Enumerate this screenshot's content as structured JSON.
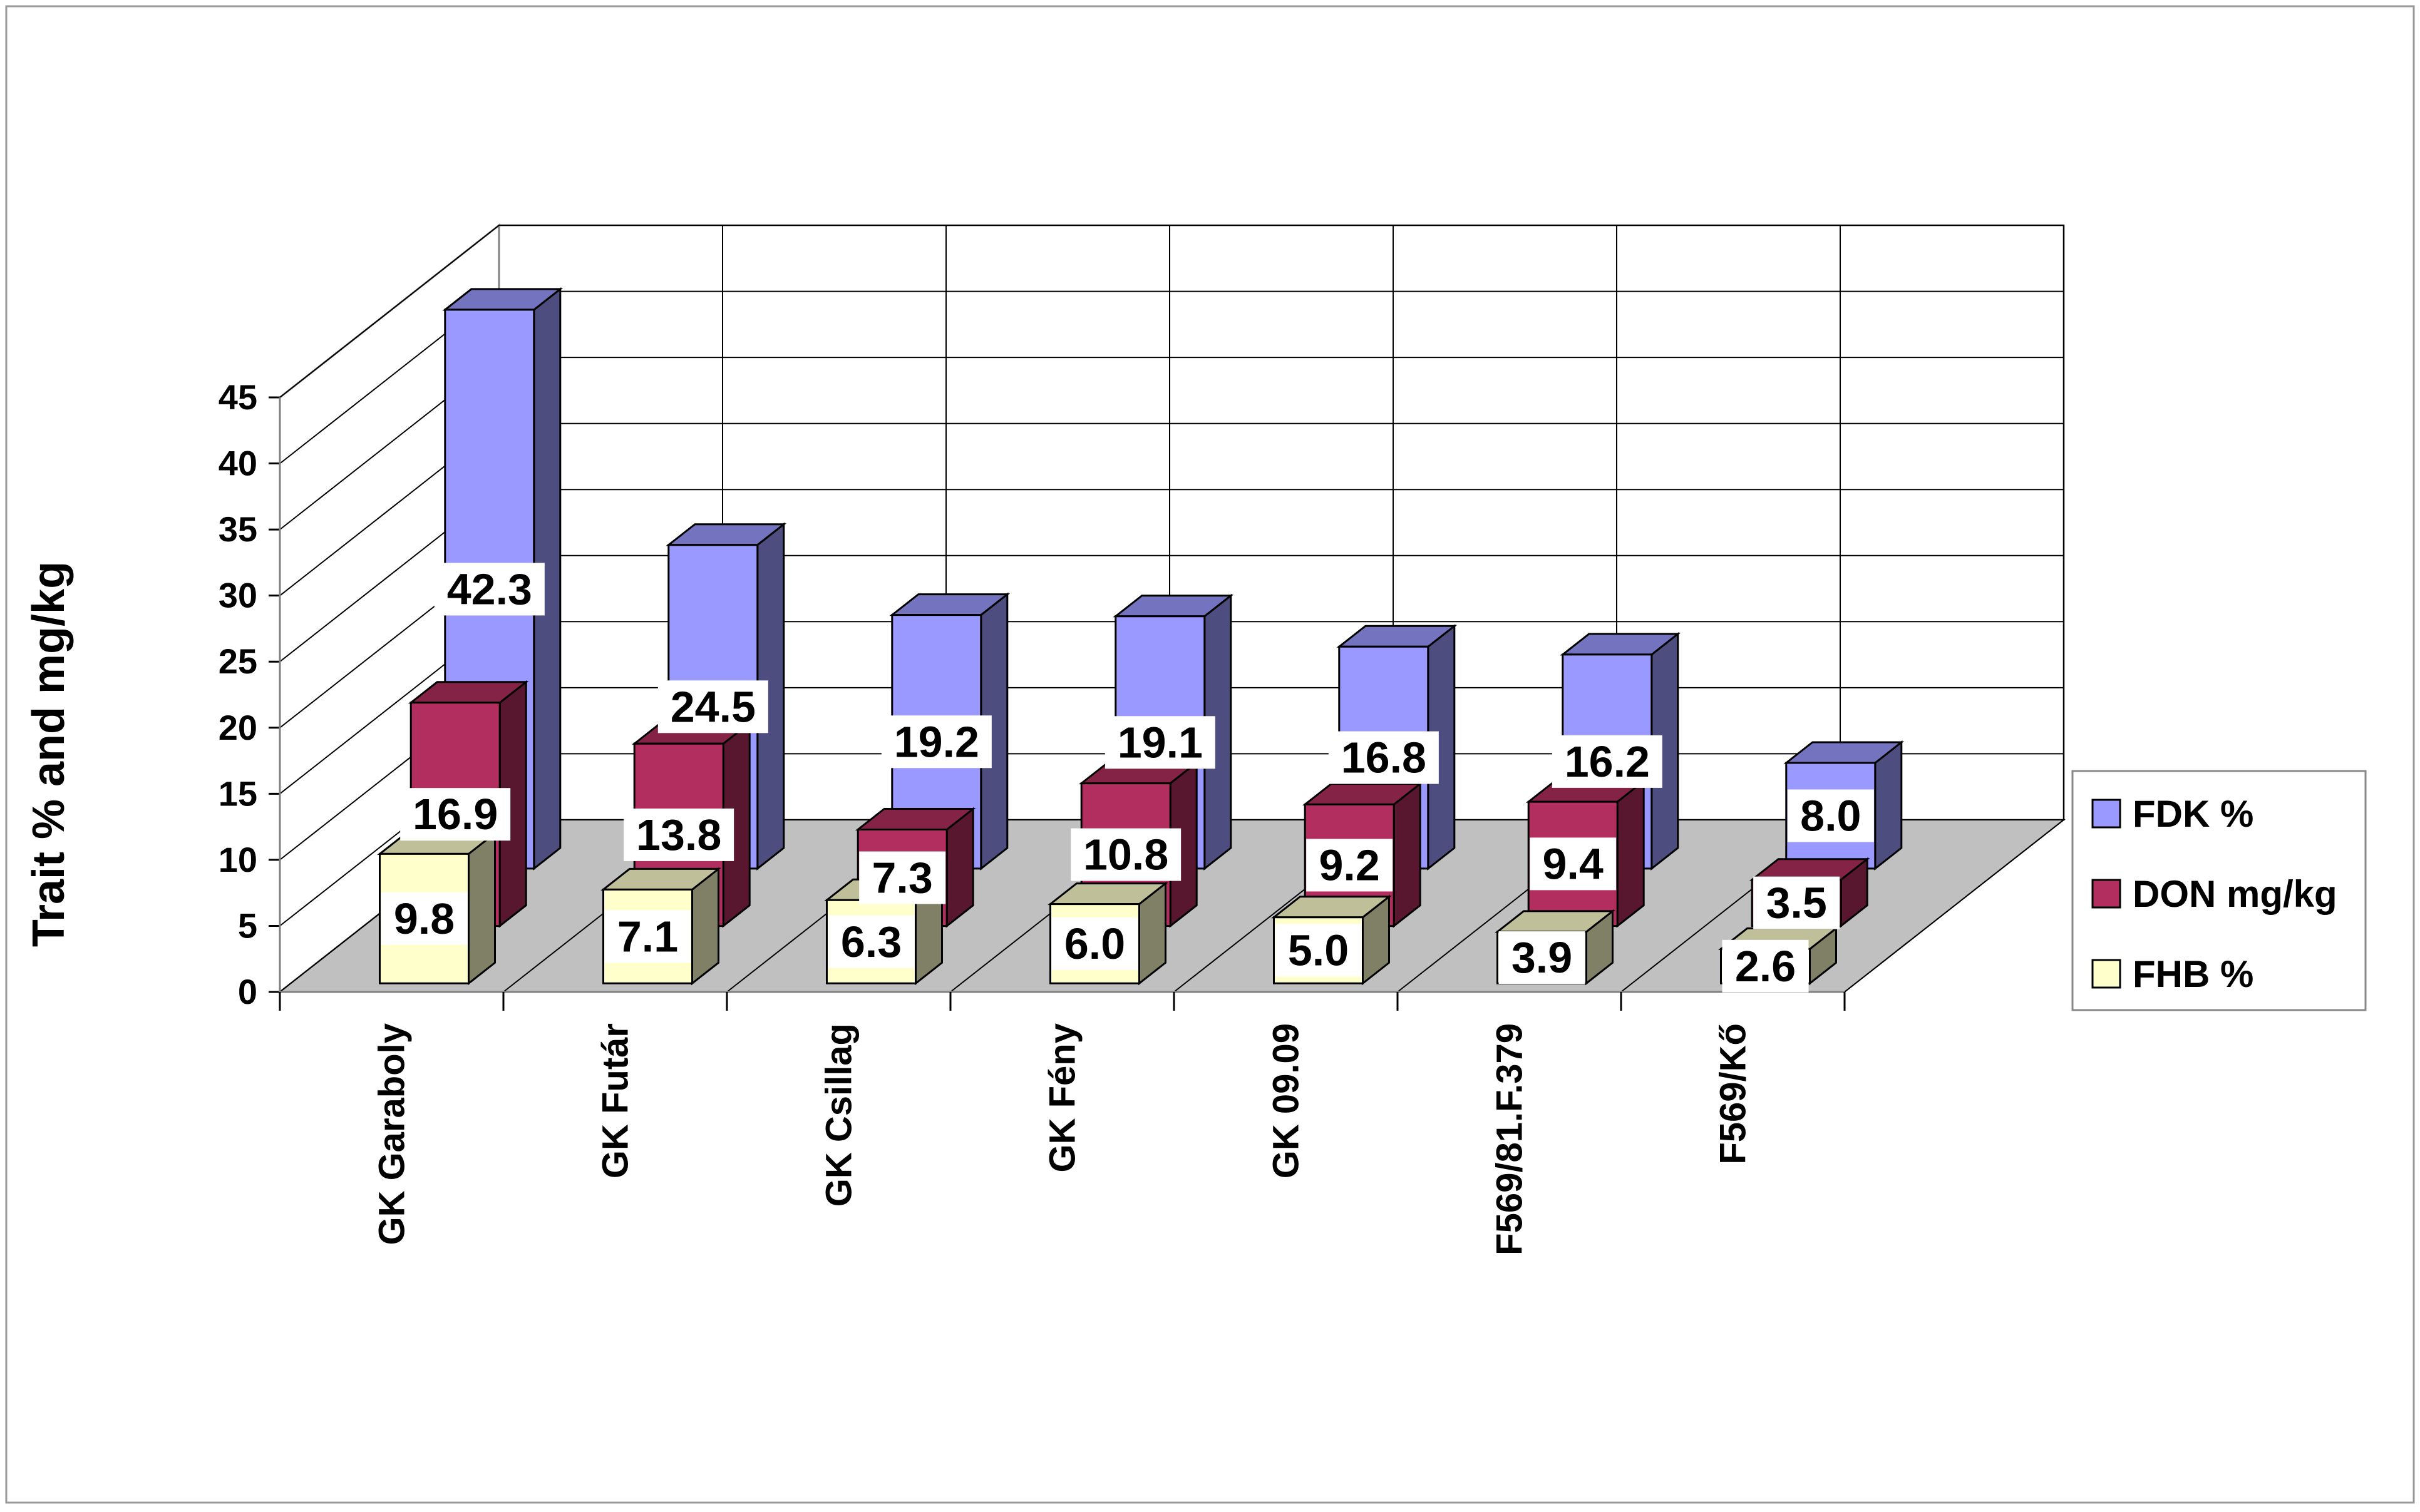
{
  "chart_data": {
    "type": "bar",
    "style": "3d-clustered-depth",
    "ylabel": "Trait % and mg/kg",
    "xlabel": "",
    "ylim": [
      0,
      45
    ],
    "yticks": [
      "0",
      "5",
      "10",
      "15",
      "20",
      "25",
      "30",
      "35",
      "40",
      "45"
    ],
    "grid": true,
    "legend_position": "right",
    "categories": [
      "GK Garaboly",
      "GK Futár",
      "GK Csillag",
      "GK Fény",
      "GK 09.09",
      "F569/81.F.379",
      "F569/Kő"
    ],
    "series": [
      {
        "name": "FDK %",
        "values": [
          42.3,
          24.5,
          19.2,
          19.1,
          16.8,
          16.2,
          8.0
        ],
        "labels": [
          "42.3",
          "24.5",
          "19.2",
          "19.1",
          "16.8",
          "16.2",
          "8.0"
        ],
        "color": "#9999ff",
        "side_color": "#4d4d80",
        "top_color": "#7373bf"
      },
      {
        "name": "DON mg/kg",
        "values": [
          16.9,
          13.8,
          7.3,
          10.8,
          9.2,
          9.4,
          3.5
        ],
        "labels": [
          "16.9",
          "13.8",
          "7.3",
          "10.8",
          "9.2",
          "9.4",
          "3.5"
        ],
        "color": "#b22e5e",
        "side_color": "#59172f",
        "top_color": "#852346"
      },
      {
        "name": "FHB %",
        "values": [
          9.8,
          7.1,
          6.3,
          6.0,
          5.0,
          3.9,
          2.6
        ],
        "labels": [
          "9.8",
          "7.1",
          "6.3",
          "6.0",
          "5.0",
          "3.9",
          "2.6"
        ],
        "color": "#ffffcc",
        "side_color": "#808066",
        "top_color": "#bfbf99"
      }
    ]
  }
}
